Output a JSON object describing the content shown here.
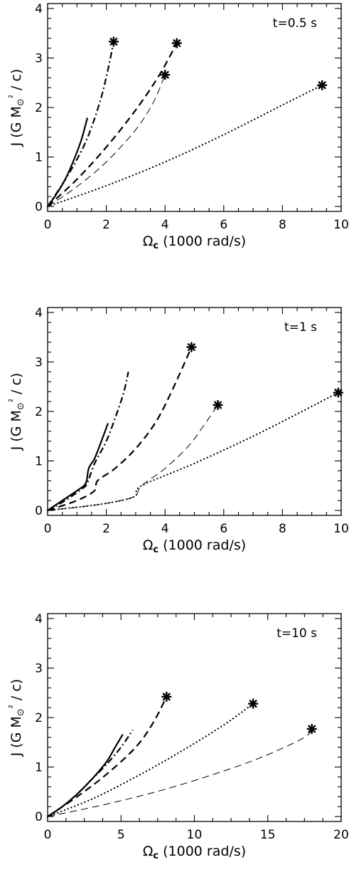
{
  "chart_data": [
    {
      "type": "line",
      "annotation": "t=0.5 s",
      "xlabel": "Ω_c (1000 rad/s)",
      "ylabel": "J (G M⊙² / c)",
      "xlim": [
        0,
        10
      ],
      "ylim": [
        -0.1,
        4.1
      ],
      "xticks": [
        0,
        2,
        4,
        6,
        8,
        10
      ],
      "yticks": [
        0,
        1,
        2,
        3,
        4
      ],
      "xtick_labels": [
        "0",
        "2",
        "4",
        "6",
        "8",
        "10"
      ],
      "ytick_labels": [
        "0",
        "1",
        "2",
        "3",
        "4"
      ],
      "series": [
        {
          "style": "solid",
          "points": [
            [
              0,
              0
            ],
            [
              0.3,
              0.25
            ],
            [
              0.6,
              0.55
            ],
            [
              0.9,
              0.95
            ],
            [
              1.15,
              1.35
            ],
            [
              1.35,
              1.78
            ]
          ]
        },
        {
          "style": "dashdot",
          "points": [
            [
              0,
              0
            ],
            [
              0.5,
              0.45
            ],
            [
              1.0,
              0.95
            ],
            [
              1.4,
              1.45
            ],
            [
              1.8,
              2.15
            ],
            [
              2.05,
              2.75
            ],
            [
              2.25,
              3.33
            ]
          ],
          "endpoint_marker": [
            2.25,
            3.33
          ]
        },
        {
          "style": "dashed-thick",
          "points": [
            [
              0,
              0
            ],
            [
              1,
              0.55
            ],
            [
              2,
              1.2
            ],
            [
              3,
              1.95
            ],
            [
              3.8,
              2.65
            ],
            [
              4.4,
              3.3
            ]
          ],
          "endpoint_marker": [
            4.4,
            3.3
          ]
        },
        {
          "style": "dashed-thin",
          "points": [
            [
              0,
              0
            ],
            [
              1,
              0.4
            ],
            [
              2,
              0.9
            ],
            [
              3,
              1.55
            ],
            [
              3.6,
              2.1
            ],
            [
              4.0,
              2.66
            ]
          ],
          "endpoint_marker": [
            4.0,
            2.66
          ]
        },
        {
          "style": "dotted",
          "points": [
            [
              0,
              0
            ],
            [
              2,
              0.42
            ],
            [
              4,
              0.9
            ],
            [
              6,
              1.45
            ],
            [
              8,
              2.05
            ],
            [
              9.35,
              2.45
            ]
          ],
          "endpoint_marker": [
            9.35,
            2.45
          ]
        }
      ]
    },
    {
      "type": "line",
      "annotation": "t=1 s",
      "xlabel": "Ω_c (1000 rad/s)",
      "ylabel": "J (G M⊙² / c)",
      "xlim": [
        0,
        10
      ],
      "ylim": [
        -0.1,
        4.1
      ],
      "xticks": [
        0,
        2,
        4,
        6,
        8,
        10
      ],
      "yticks": [
        0,
        1,
        2,
        3,
        4
      ],
      "xtick_labels": [
        "0",
        "2",
        "4",
        "6",
        "8",
        "10"
      ],
      "ytick_labels": [
        "0",
        "1",
        "2",
        "3",
        "4"
      ],
      "series": [
        {
          "style": "solid",
          "points": [
            [
              0,
              0
            ],
            [
              0.5,
              0.2
            ],
            [
              1.0,
              0.4
            ],
            [
              1.3,
              0.55
            ],
            [
              1.4,
              0.85
            ],
            [
              1.6,
              1.05
            ],
            [
              1.8,
              1.35
            ],
            [
              2.05,
              1.75
            ]
          ]
        },
        {
          "style": "dashdot",
          "points": [
            [
              0,
              0
            ],
            [
              0.6,
              0.2
            ],
            [
              1.2,
              0.45
            ],
            [
              1.35,
              0.55
            ],
            [
              1.6,
              0.95
            ],
            [
              2.0,
              1.4
            ],
            [
              2.35,
              1.95
            ],
            [
              2.6,
              2.4
            ],
            [
              2.75,
              2.8
            ]
          ]
        },
        {
          "style": "dashed-thick",
          "points": [
            [
              0,
              0
            ],
            [
              1.0,
              0.2
            ],
            [
              1.6,
              0.4
            ],
            [
              1.7,
              0.6
            ],
            [
              2.3,
              0.85
            ],
            [
              3.0,
              1.25
            ],
            [
              3.7,
              1.8
            ],
            [
              4.3,
              2.5
            ],
            [
              4.9,
              3.3
            ]
          ],
          "endpoint_marker": [
            4.9,
            3.3
          ]
        },
        {
          "style": "dashed-thin",
          "points": [
            [
              0,
              0
            ],
            [
              1.5,
              0.1
            ],
            [
              2.5,
              0.2
            ],
            [
              3.0,
              0.3
            ],
            [
              3.2,
              0.5
            ],
            [
              4.0,
              0.85
            ],
            [
              4.8,
              1.3
            ],
            [
              5.3,
              1.7
            ],
            [
              5.8,
              2.13
            ]
          ],
          "endpoint_marker": [
            5.8,
            2.13
          ]
        },
        {
          "style": "dotted",
          "points": [
            [
              0,
              0
            ],
            [
              1.5,
              0.1
            ],
            [
              2.5,
              0.2
            ],
            [
              3.0,
              0.3
            ],
            [
              3.2,
              0.5
            ],
            [
              5,
              0.95
            ],
            [
              7,
              1.5
            ],
            [
              8.5,
              1.95
            ],
            [
              9.9,
              2.38
            ]
          ],
          "endpoint_marker": [
            9.9,
            2.38
          ]
        }
      ]
    },
    {
      "type": "line",
      "annotation": "t=10 s",
      "xlabel": "Ω_c (1000 rad/s)",
      "ylabel": "J (G M⊙² / c)",
      "xlim": [
        0,
        20
      ],
      "ylim": [
        -0.1,
        4.1
      ],
      "xticks": [
        0,
        5,
        10,
        15,
        20
      ],
      "yticks": [
        0,
        1,
        2,
        3,
        4
      ],
      "xtick_labels": [
        "0",
        "5",
        "10",
        "15",
        "20"
      ],
      "ytick_labels": [
        "0",
        "1",
        "2",
        "3",
        "4"
      ],
      "series": [
        {
          "style": "solid",
          "points": [
            [
              0,
              0
            ],
            [
              1,
              0.2
            ],
            [
              2,
              0.45
            ],
            [
              3,
              0.75
            ],
            [
              4,
              1.1
            ],
            [
              4.6,
              1.4
            ],
            [
              5.1,
              1.65
            ]
          ]
        },
        {
          "style": "dashdot",
          "points": [
            [
              0,
              0
            ],
            [
              1,
              0.2
            ],
            [
              2,
              0.45
            ],
            [
              3,
              0.75
            ],
            [
              4,
              1.05
            ],
            [
              5,
              1.4
            ],
            [
              5.8,
              1.75
            ]
          ]
        },
        {
          "style": "dashed-thick",
          "points": [
            [
              0,
              0
            ],
            [
              2,
              0.4
            ],
            [
              4,
              0.85
            ],
            [
              6,
              1.4
            ],
            [
              7.2,
              1.9
            ],
            [
              8.1,
              2.42
            ]
          ],
          "endpoint_marker": [
            8.1,
            2.42
          ]
        },
        {
          "style": "dotted",
          "points": [
            [
              0,
              0
            ],
            [
              3,
              0.35
            ],
            [
              6,
              0.8
            ],
            [
              9,
              1.3
            ],
            [
              12,
              1.85
            ],
            [
              14,
              2.28
            ]
          ],
          "endpoint_marker": [
            14,
            2.28
          ]
        },
        {
          "style": "dashed-thin",
          "points": [
            [
              0,
              0
            ],
            [
              4,
              0.25
            ],
            [
              8,
              0.55
            ],
            [
              12,
              0.92
            ],
            [
              15,
              1.25
            ],
            [
              17.5,
              1.6
            ],
            [
              18,
              1.77
            ]
          ],
          "endpoint_marker": [
            18,
            1.77
          ]
        }
      ]
    }
  ]
}
